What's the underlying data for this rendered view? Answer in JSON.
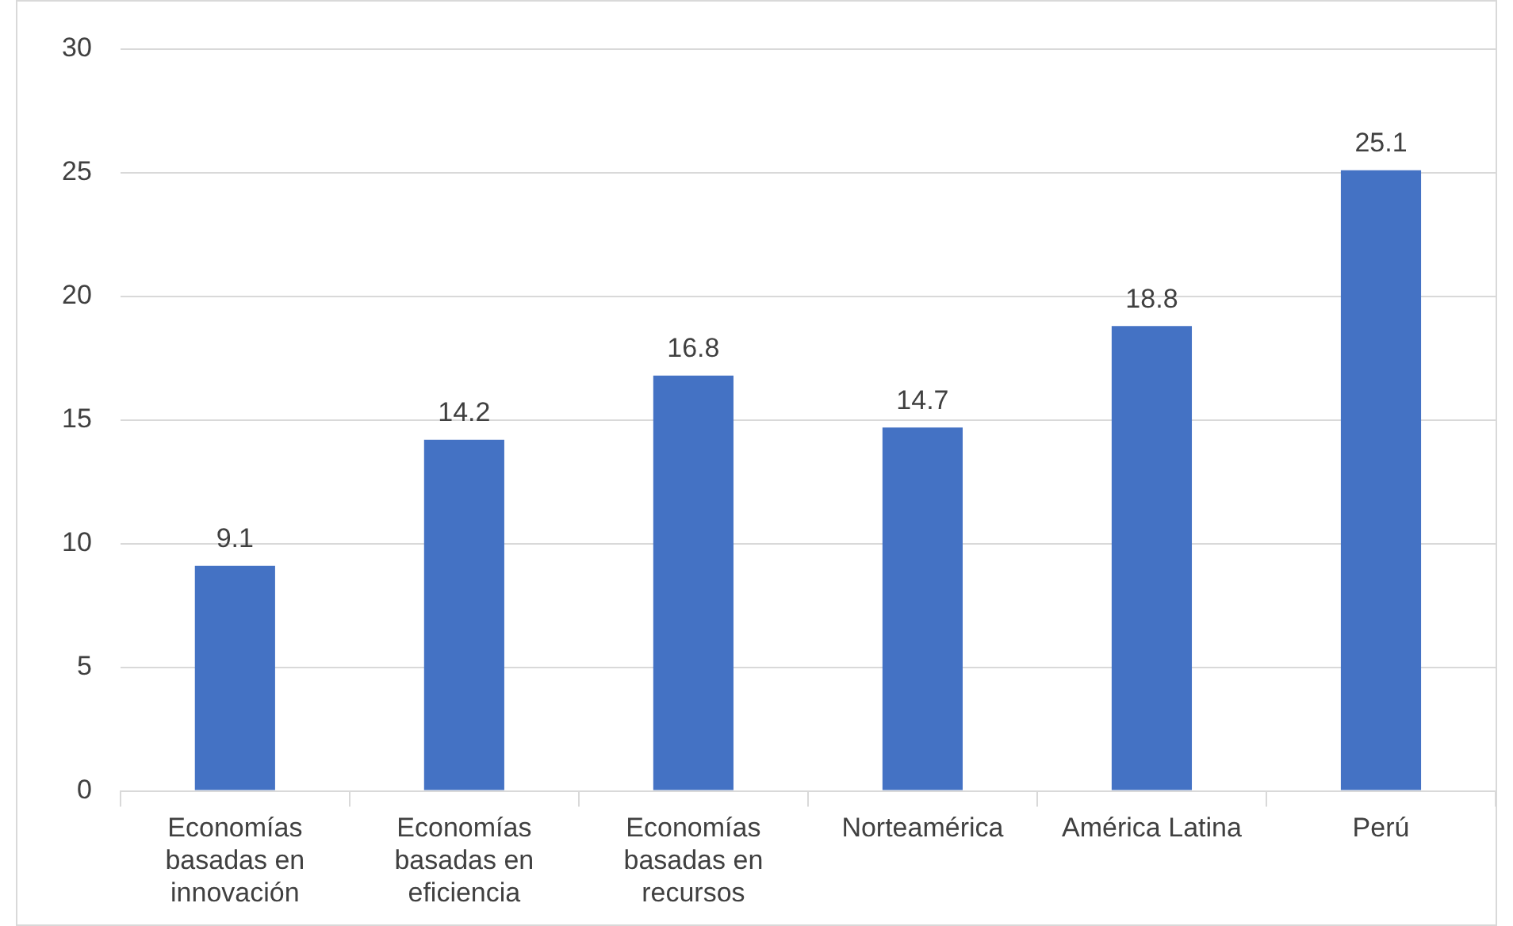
{
  "chart_data": {
    "type": "bar",
    "categories": [
      "Economías basadas en innovación",
      "Economías basadas en eficiencia",
      "Economías basadas en recursos",
      "Norteamérica",
      "América Latina",
      "Perú"
    ],
    "values": [
      9.1,
      14.2,
      16.8,
      14.7,
      18.8,
      25.1
    ],
    "color": "#4472c4",
    "ylim": [
      0,
      30
    ],
    "yticks": [
      0,
      5,
      10,
      15,
      20,
      25,
      30
    ],
    "grid": "y",
    "data_labels": true,
    "legend": false
  }
}
